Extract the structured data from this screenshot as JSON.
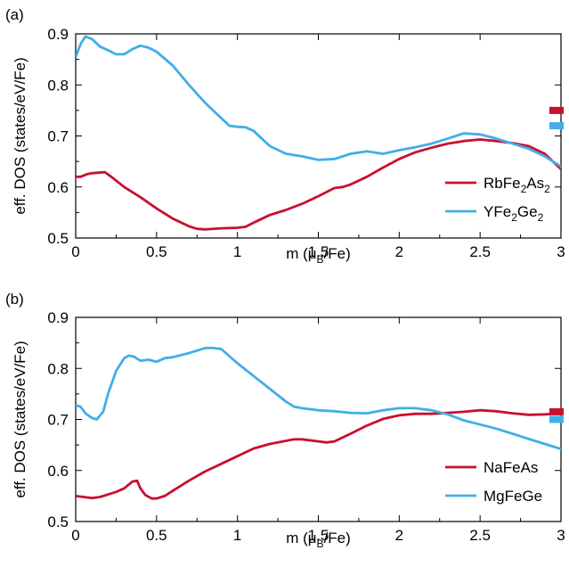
{
  "colors": {
    "series_red": "#c8102e",
    "series_blue": "#41aee8"
  },
  "chart_data": [
    {
      "type": "line",
      "panel_label": "(a)",
      "xlabel_main": "m (μ",
      "xlabel_sub": "B",
      "xlabel_tail": "/Fe)",
      "ylabel": "eff. DOS (states/eV/Fe)",
      "xlim": [
        0,
        3
      ],
      "ylim": [
        0.5,
        0.9
      ],
      "xticks": [
        "0",
        "0.5",
        "1",
        "1.5",
        "2",
        "2.5",
        "3"
      ],
      "yticks": [
        "0.5",
        "0.6",
        "0.7",
        "0.8",
        "0.9"
      ],
      "legend_position": "bottom-right",
      "series": [
        {
          "legend_parts": [
            [
              "RbFe",
              false
            ],
            [
              "2",
              true
            ],
            [
              "As",
              false
            ],
            [
              "2",
              true
            ]
          ],
          "color": "#c8102e",
          "marker_value": 0.75,
          "x": [
            0,
            0.03,
            0.07,
            0.1,
            0.14,
            0.18,
            0.22,
            0.3,
            0.4,
            0.5,
            0.6,
            0.7,
            0.75,
            0.8,
            0.9,
            1.0,
            1.05,
            1.1,
            1.2,
            1.3,
            1.4,
            1.5,
            1.55,
            1.6,
            1.65,
            1.7,
            1.8,
            1.9,
            2.0,
            2.1,
            2.2,
            2.3,
            2.4,
            2.5,
            2.6,
            2.7,
            2.8,
            2.9,
            3.0
          ],
          "y": [
            0.62,
            0.62,
            0.625,
            0.627,
            0.628,
            0.629,
            0.62,
            0.6,
            0.58,
            0.558,
            0.538,
            0.523,
            0.518,
            0.517,
            0.519,
            0.52,
            0.522,
            0.53,
            0.545,
            0.555,
            0.567,
            0.582,
            0.59,
            0.598,
            0.6,
            0.605,
            0.62,
            0.638,
            0.655,
            0.668,
            0.677,
            0.685,
            0.69,
            0.693,
            0.69,
            0.686,
            0.68,
            0.665,
            0.635
          ]
        },
        {
          "legend_parts": [
            [
              "YFe",
              false
            ],
            [
              "2",
              true
            ],
            [
              "Ge",
              false
            ],
            [
              "2",
              true
            ]
          ],
          "color": "#41aee8",
          "marker_value": 0.72,
          "x": [
            0,
            0.03,
            0.06,
            0.1,
            0.15,
            0.2,
            0.25,
            0.3,
            0.35,
            0.4,
            0.45,
            0.5,
            0.6,
            0.7,
            0.8,
            0.9,
            0.95,
            1.0,
            1.05,
            1.1,
            1.2,
            1.3,
            1.4,
            1.5,
            1.6,
            1.7,
            1.8,
            1.9,
            2.0,
            2.1,
            2.2,
            2.3,
            2.4,
            2.5,
            2.6,
            2.7,
            2.8,
            2.9,
            3.0
          ],
          "y": [
            0.855,
            0.88,
            0.895,
            0.89,
            0.875,
            0.868,
            0.86,
            0.86,
            0.87,
            0.877,
            0.873,
            0.865,
            0.838,
            0.8,
            0.765,
            0.735,
            0.72,
            0.718,
            0.717,
            0.71,
            0.68,
            0.665,
            0.66,
            0.653,
            0.655,
            0.665,
            0.67,
            0.665,
            0.672,
            0.678,
            0.685,
            0.695,
            0.705,
            0.703,
            0.695,
            0.685,
            0.675,
            0.66,
            0.64
          ]
        }
      ]
    },
    {
      "type": "line",
      "panel_label": "(b)",
      "xlabel_main": "m (μ",
      "xlabel_sub": "B",
      "xlabel_tail": "/Fe)",
      "ylabel": "eff. DOS (states/eV/Fe)",
      "xlim": [
        0,
        3
      ],
      "ylim": [
        0.5,
        0.9
      ],
      "xticks": [
        "0",
        "0.5",
        "1",
        "1.5",
        "2",
        "2.5",
        "3"
      ],
      "yticks": [
        "0.5",
        "0.6",
        "0.7",
        "0.8",
        "0.9"
      ],
      "legend_position": "bottom-right",
      "series": [
        {
          "legend_parts": [
            [
              "NaFeAs",
              false
            ]
          ],
          "color": "#c8102e",
          "marker_value": 0.715,
          "x": [
            0,
            0.05,
            0.1,
            0.15,
            0.2,
            0.25,
            0.3,
            0.35,
            0.38,
            0.4,
            0.43,
            0.47,
            0.5,
            0.55,
            0.6,
            0.7,
            0.8,
            0.9,
            1.0,
            1.1,
            1.2,
            1.3,
            1.35,
            1.4,
            1.5,
            1.55,
            1.6,
            1.7,
            1.8,
            1.9,
            2.0,
            2.1,
            2.2,
            2.3,
            2.4,
            2.5,
            2.6,
            2.7,
            2.8,
            2.9,
            3.0
          ],
          "y": [
            0.55,
            0.548,
            0.546,
            0.548,
            0.553,
            0.558,
            0.565,
            0.578,
            0.58,
            0.565,
            0.552,
            0.545,
            0.545,
            0.55,
            0.56,
            0.58,
            0.598,
            0.613,
            0.628,
            0.643,
            0.652,
            0.658,
            0.661,
            0.661,
            0.657,
            0.655,
            0.657,
            0.672,
            0.688,
            0.701,
            0.708,
            0.711,
            0.711,
            0.713,
            0.715,
            0.718,
            0.716,
            0.712,
            0.709,
            0.71,
            0.712
          ]
        },
        {
          "legend_parts": [
            [
              "MgFeGe",
              false
            ]
          ],
          "color": "#41aee8",
          "marker_value": 0.7,
          "x": [
            0,
            0.03,
            0.06,
            0.1,
            0.13,
            0.17,
            0.2,
            0.25,
            0.3,
            0.33,
            0.36,
            0.4,
            0.45,
            0.5,
            0.55,
            0.6,
            0.7,
            0.8,
            0.85,
            0.9,
            1.0,
            1.1,
            1.2,
            1.3,
            1.35,
            1.4,
            1.5,
            1.6,
            1.7,
            1.8,
            1.9,
            2.0,
            2.1,
            2.2,
            2.3,
            2.4,
            2.5,
            2.6,
            2.7,
            2.8,
            2.9,
            3.0
          ],
          "y": [
            0.728,
            0.725,
            0.712,
            0.703,
            0.7,
            0.715,
            0.75,
            0.795,
            0.82,
            0.825,
            0.823,
            0.815,
            0.817,
            0.813,
            0.82,
            0.822,
            0.83,
            0.84,
            0.84,
            0.838,
            0.81,
            0.785,
            0.76,
            0.735,
            0.725,
            0.722,
            0.718,
            0.716,
            0.713,
            0.712,
            0.718,
            0.722,
            0.722,
            0.718,
            0.71,
            0.698,
            0.69,
            0.682,
            0.672,
            0.662,
            0.652,
            0.642
          ]
        }
      ]
    }
  ]
}
